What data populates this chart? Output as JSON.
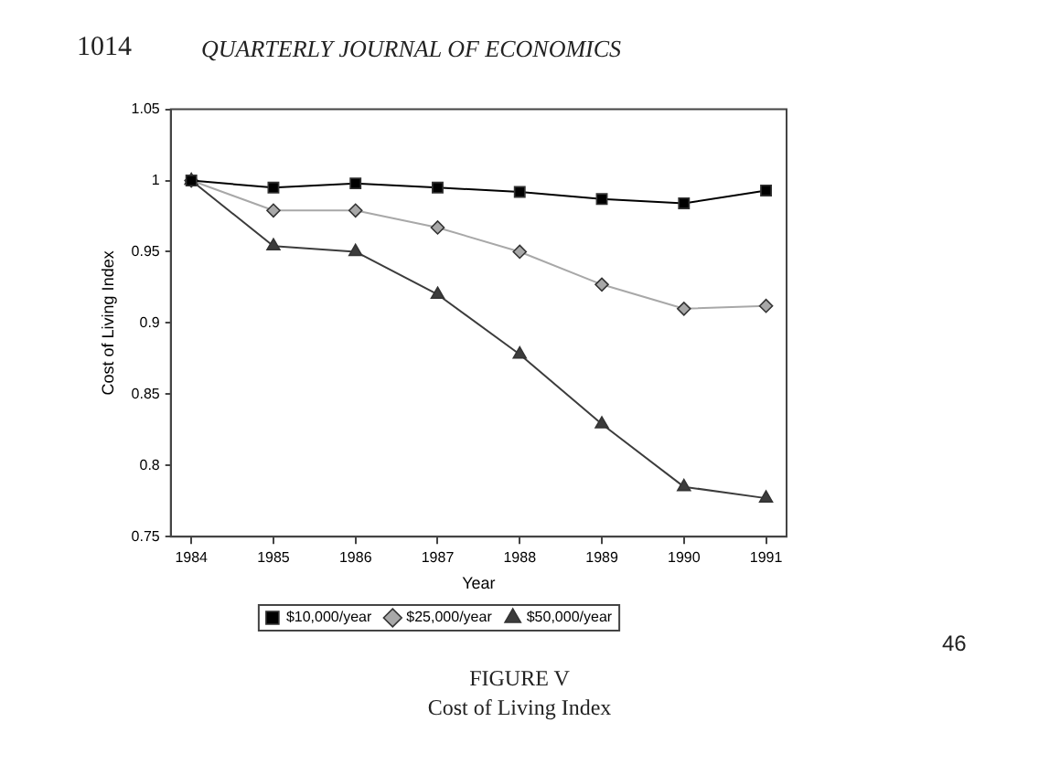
{
  "chart_data": {
    "type": "line",
    "xlabel": "Year",
    "ylabel": "Cost of Living Index",
    "x": [
      1984,
      1985,
      1986,
      1987,
      1988,
      1989,
      1990,
      1991
    ],
    "series": [
      {
        "name": "$10,000/year",
        "color": "#000000",
        "marker": "square",
        "values": [
          1.0,
          0.995,
          0.998,
          0.995,
          0.992,
          0.987,
          0.984,
          0.993
        ]
      },
      {
        "name": "$25,000/year",
        "color": "#a8a8a8",
        "marker": "diamond",
        "values": [
          1.0,
          0.979,
          0.979,
          0.967,
          0.95,
          0.927,
          0.91,
          0.912
        ]
      },
      {
        "name": "$50,000/year",
        "color": "#3c3c3c",
        "marker": "triangle",
        "values": [
          1.0,
          0.954,
          0.95,
          0.92,
          0.878,
          0.829,
          0.785,
          0.777
        ]
      }
    ],
    "xlim": [
      1983.75,
      1991.25
    ],
    "xticks": [
      1984,
      1985,
      1986,
      1987,
      1988,
      1989,
      1990,
      1991
    ],
    "ylim": [
      0.75,
      1.05
    ],
    "yticks": [
      0.75,
      0.8,
      0.85,
      0.9,
      0.95,
      1,
      1.05
    ],
    "grid": false,
    "legend": "bottom",
    "line_style": "solid",
    "annotations": [
      "1014",
      "QUARTERLY JOURNAL OF ECONOMICS",
      "FIGURE V",
      "Cost of Living Index",
      "46"
    ]
  }
}
